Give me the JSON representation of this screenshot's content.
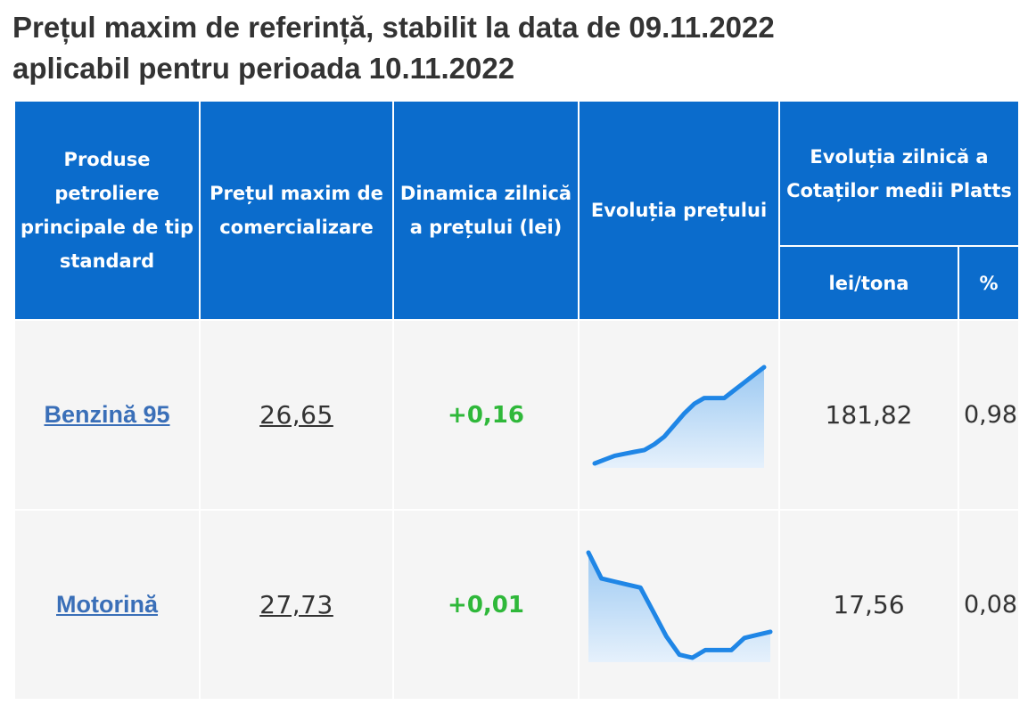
{
  "title": {
    "line1": "Prețul maxim de referință, stabilit la data de 09.11.2022",
    "line2": "aplicabil pentru perioada 10.11.2022"
  },
  "table": {
    "headers": {
      "product": "Produse petroliere principale de tip standard",
      "max_price": "Prețul maxim de comercializare",
      "dynamics": "Dinamica zilnică a prețului (lei)",
      "evolution": "Evoluția prețului",
      "platts": "Evoluția zilnică a Cotaților medii Platts",
      "lei_tona": "lei/tona",
      "percent": "%"
    },
    "rows": [
      {
        "product": "Benzină 95",
        "max_price": "26,65",
        "dynamics": "+0,16",
        "platts_lei_tona": "181,82",
        "platts_percent": "0,98",
        "trend": [
          20.2,
          20.4,
          20.6,
          20.7,
          20.8,
          20.9,
          21.2,
          21.6,
          22.2,
          22.8,
          23.3,
          23.6,
          23.6,
          23.6,
          24.0,
          24.4,
          24.8,
          25.2
        ]
      },
      {
        "product": "Motorină",
        "max_price": "27,73",
        "dynamics": "+0,01",
        "platts_lei_tona": "17,56",
        "platts_percent": "0,08",
        "trend": [
          30.5,
          28.8,
          28.6,
          28.4,
          28.2,
          26.6,
          25.0,
          23.8,
          23.6,
          24.1,
          24.1,
          24.1,
          24.9,
          25.1,
          25.3
        ]
      }
    ]
  },
  "colors": {
    "header_bg": "#0b6ccc",
    "header_text": "#ffffff",
    "cell_bg": "#f5f5f5",
    "link": "#3a6fb8",
    "positive": "#2fb83a",
    "spark_line": "#1f86e6",
    "spark_fill_top": "#9cc9f2",
    "spark_fill_bottom": "#e6f1fc"
  }
}
